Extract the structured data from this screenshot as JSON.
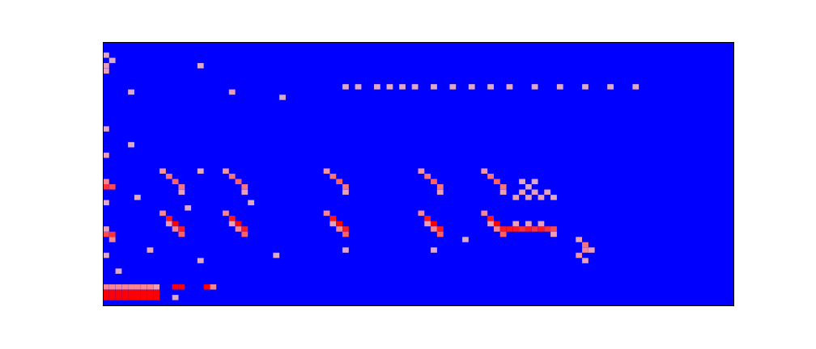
{
  "chart_data": {
    "type": "heatmap",
    "tick_labels": false,
    "xlim": [
      0,
      100
    ],
    "ylim": [
      0,
      50
    ],
    "columns": 100,
    "rows": 50,
    "zlim": [
      0,
      1
    ],
    "cells": [
      [
        0,
        1,
        1
      ],
      [
        1,
        1,
        1
      ],
      [
        2,
        1,
        1
      ],
      [
        3,
        1,
        1
      ],
      [
        4,
        1,
        1
      ],
      [
        5,
        1,
        1
      ],
      [
        6,
        1,
        1
      ],
      [
        7,
        1,
        1
      ],
      [
        8,
        1,
        1
      ],
      [
        0,
        2,
        1
      ],
      [
        1,
        2,
        1
      ],
      [
        2,
        2,
        1
      ],
      [
        3,
        2,
        1
      ],
      [
        4,
        2,
        1
      ],
      [
        5,
        2,
        1
      ],
      [
        6,
        2,
        1
      ],
      [
        7,
        2,
        1
      ],
      [
        8,
        2,
        1
      ],
      [
        0,
        3,
        0.7
      ],
      [
        1,
        3,
        0.7
      ],
      [
        2,
        3,
        0.7
      ],
      [
        3,
        3,
        0.7
      ],
      [
        4,
        3,
        0.7
      ],
      [
        5,
        3,
        0.7
      ],
      [
        6,
        3,
        0.7
      ],
      [
        7,
        3,
        0.7
      ],
      [
        8,
        3,
        0.6
      ],
      [
        11,
        3,
        1
      ],
      [
        12,
        3,
        1
      ],
      [
        16,
        3,
        1
      ],
      [
        17,
        3,
        0.7
      ],
      [
        11,
        1,
        0.55
      ],
      [
        0,
        22,
        0.9
      ],
      [
        1,
        22,
        0.85
      ],
      [
        0,
        23,
        0.7
      ],
      [
        0,
        13,
        0.85
      ],
      [
        1,
        13,
        0.9
      ],
      [
        1,
        12,
        0.7
      ],
      [
        0,
        14,
        0.6
      ],
      [
        0,
        28,
        0.6
      ],
      [
        0,
        33,
        0.55
      ],
      [
        0,
        44,
        0.6
      ],
      [
        0,
        45,
        0.6
      ],
      [
        0,
        47,
        0.55
      ],
      [
        1,
        46,
        0.55
      ],
      [
        0,
        19,
        0.55
      ],
      [
        0,
        9,
        0.55
      ],
      [
        2,
        6,
        0.55
      ],
      [
        4,
        40,
        0.55
      ],
      [
        4,
        30,
        0.55
      ],
      [
        5,
        20,
        0.55
      ],
      [
        7,
        10,
        0.55
      ],
      [
        13,
        18,
        0.55
      ],
      [
        15,
        25,
        0.55
      ],
      [
        15,
        45,
        0.55
      ],
      [
        15,
        8,
        0.55
      ],
      [
        9,
        25,
        0.65
      ],
      [
        10,
        24,
        0.75
      ],
      [
        11,
        23,
        0.8
      ],
      [
        12,
        22,
        0.75
      ],
      [
        12,
        21,
        0.6
      ],
      [
        9,
        17,
        0.7
      ],
      [
        10,
        16,
        0.95
      ],
      [
        10,
        15,
        0.6
      ],
      [
        11,
        15,
        1
      ],
      [
        11,
        14,
        0.7
      ],
      [
        12,
        14,
        0.95
      ],
      [
        12,
        13,
        0.8
      ],
      [
        19,
        25,
        0.65
      ],
      [
        20,
        24,
        0.75
      ],
      [
        21,
        23,
        0.8
      ],
      [
        22,
        22,
        0.75
      ],
      [
        22,
        21,
        0.6
      ],
      [
        19,
        17,
        0.7
      ],
      [
        20,
        16,
        0.95
      ],
      [
        20,
        15,
        0.6
      ],
      [
        21,
        15,
        1
      ],
      [
        21,
        14,
        0.7
      ],
      [
        22,
        14,
        0.95
      ],
      [
        22,
        13,
        0.8
      ],
      [
        35,
        25,
        0.65
      ],
      [
        36,
        24,
        0.75
      ],
      [
        37,
        23,
        0.8
      ],
      [
        38,
        22,
        0.75
      ],
      [
        38,
        21,
        0.6
      ],
      [
        35,
        17,
        0.7
      ],
      [
        36,
        16,
        0.95
      ],
      [
        36,
        15,
        0.6
      ],
      [
        37,
        15,
        1
      ],
      [
        37,
        14,
        0.7
      ],
      [
        38,
        14,
        0.95
      ],
      [
        38,
        13,
        0.8
      ],
      [
        50,
        25,
        0.65
      ],
      [
        51,
        24,
        0.75
      ],
      [
        52,
        23,
        0.8
      ],
      [
        53,
        22,
        0.75
      ],
      [
        53,
        21,
        0.6
      ],
      [
        50,
        17,
        0.7
      ],
      [
        51,
        16,
        0.95
      ],
      [
        51,
        15,
        0.6
      ],
      [
        52,
        15,
        1
      ],
      [
        52,
        14,
        0.7
      ],
      [
        53,
        14,
        0.95
      ],
      [
        53,
        13,
        0.8
      ],
      [
        60,
        25,
        0.65
      ],
      [
        61,
        24,
        0.75
      ],
      [
        62,
        23,
        0.8
      ],
      [
        63,
        22,
        0.75
      ],
      [
        63,
        21,
        0.6
      ],
      [
        60,
        17,
        0.7
      ],
      [
        61,
        16,
        0.95
      ],
      [
        61,
        15,
        0.6
      ],
      [
        62,
        15,
        1
      ],
      [
        62,
        14,
        0.7
      ],
      [
        63,
        14,
        0.95
      ],
      [
        63,
        13,
        0.8
      ],
      [
        64,
        14,
        0.95
      ],
      [
        65,
        14,
        0.95
      ],
      [
        66,
        14,
        0.9
      ],
      [
        67,
        14,
        0.95
      ],
      [
        68,
        14,
        0.9
      ],
      [
        69,
        14,
        0.95
      ],
      [
        70,
        14,
        0.9
      ],
      [
        71,
        14,
        0.85
      ],
      [
        65,
        15,
        0.6
      ],
      [
        67,
        15,
        0.6
      ],
      [
        69,
        15,
        0.6
      ],
      [
        71,
        13,
        0.6
      ],
      [
        65,
        20,
        0.6
      ],
      [
        66,
        21,
        0.6
      ],
      [
        67,
        20,
        0.6
      ],
      [
        68,
        21,
        0.6
      ],
      [
        69,
        20,
        0.6
      ],
      [
        70,
        21,
        0.6
      ],
      [
        71,
        20,
        0.55
      ],
      [
        66,
        23,
        0.55
      ],
      [
        67,
        22,
        0.55
      ],
      [
        68,
        23,
        0.55
      ],
      [
        75,
        12,
        0.6
      ],
      [
        76,
        11,
        0.75
      ],
      [
        76,
        10,
        0.7
      ],
      [
        75,
        9,
        0.65
      ],
      [
        77,
        10,
        0.6
      ],
      [
        76,
        8,
        0.6
      ],
      [
        38,
        41,
        0.55
      ],
      [
        40,
        41,
        0.55
      ],
      [
        43,
        41,
        0.55
      ],
      [
        45,
        41,
        0.55
      ],
      [
        47,
        41,
        0.55
      ],
      [
        49,
        41,
        0.55
      ],
      [
        52,
        41,
        0.55
      ],
      [
        55,
        41,
        0.55
      ],
      [
        58,
        41,
        0.55
      ],
      [
        61,
        41,
        0.55
      ],
      [
        64,
        41,
        0.55
      ],
      [
        68,
        41,
        0.55
      ],
      [
        72,
        41,
        0.55
      ],
      [
        76,
        41,
        0.55
      ],
      [
        80,
        41,
        0.55
      ],
      [
        84,
        41,
        0.55
      ],
      [
        20,
        40,
        0.6
      ],
      [
        28,
        39,
        0.55
      ],
      [
        23,
        19,
        0.55
      ],
      [
        27,
        9,
        0.55
      ],
      [
        38,
        10,
        0.55
      ],
      [
        52,
        10,
        0.55
      ],
      [
        57,
        12,
        0.55
      ]
    ]
  }
}
